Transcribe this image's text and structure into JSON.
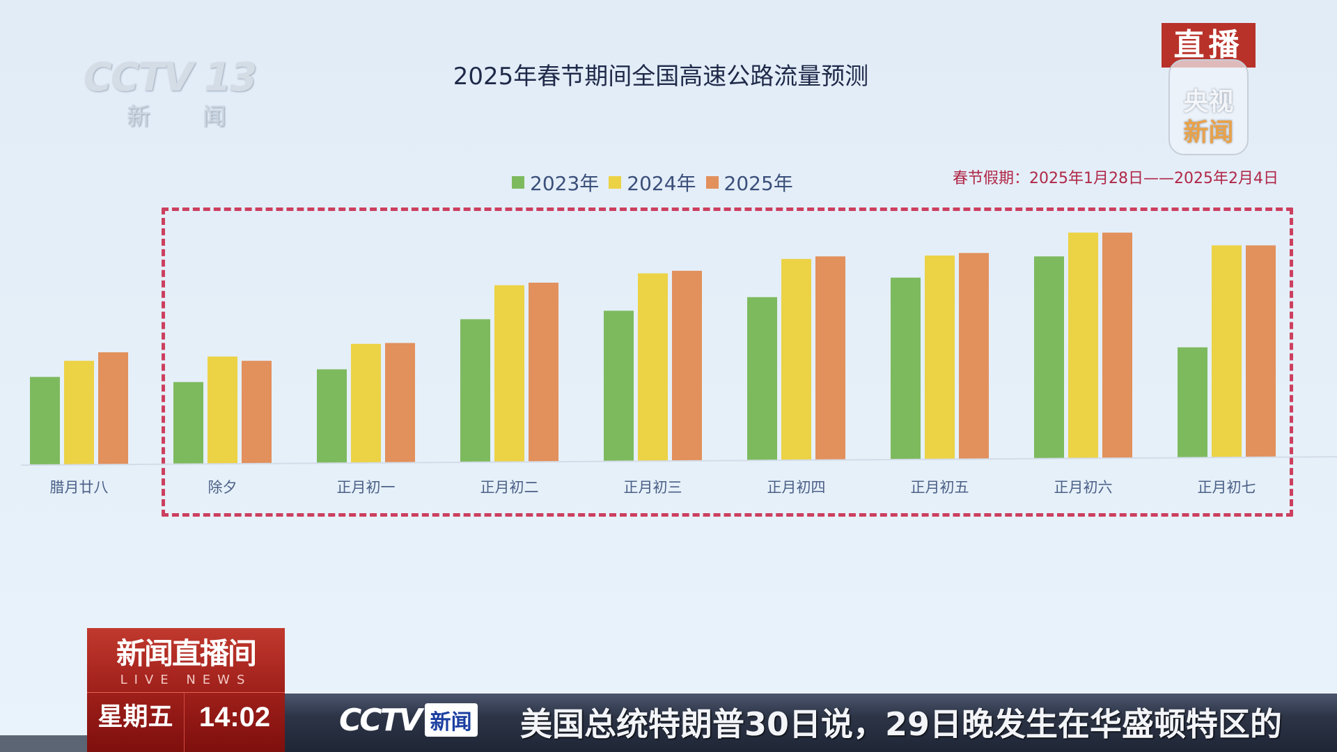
{
  "channel_logo": {
    "text": "CCTV 13",
    "subtitle": "新 闻"
  },
  "live_badge": {
    "top": "直播",
    "bottom_line1": "央视",
    "bottom_line2": "新闻"
  },
  "chart_data": {
    "type": "bar",
    "title": "2025年春节期间全国高速公路流量预测",
    "holiday_note_label": "春节假期",
    "holiday_note_range": "2025年1月28日——2025年2月4日",
    "categories": [
      "腊月廿八",
      "除夕",
      "正月初一",
      "正月初二",
      "正月初三",
      "正月初四",
      "正月初五",
      "正月初六",
      "正月初七"
    ],
    "series": [
      {
        "name": "2023年",
        "color": "#7dba5e",
        "values": [
          103,
          96,
          110,
          168,
          177,
          192,
          214,
          238,
          130
        ]
      },
      {
        "name": "2024年",
        "color": "#ecd245",
        "values": [
          122,
          126,
          140,
          208,
          221,
          237,
          240,
          266,
          250
        ]
      },
      {
        "name": "2025年",
        "color": "#e2905c",
        "values": [
          132,
          121,
          141,
          211,
          224,
          240,
          243,
          266,
          250
        ]
      }
    ],
    "legend": "top-center",
    "grid": false,
    "highlight_box": "除夕–正月初七 (dashed red)",
    "yaxis_visible": false
  },
  "lower_third": {
    "program": "新闻直播间",
    "program_en": "LIVE NEWS",
    "day": "星期五",
    "time": "14:02"
  },
  "ticker": {
    "brand": "CCTV",
    "brand_tag": "新闻",
    "text": "美国总统特朗普30日说，29日晚发生在华盛顿特区的"
  }
}
